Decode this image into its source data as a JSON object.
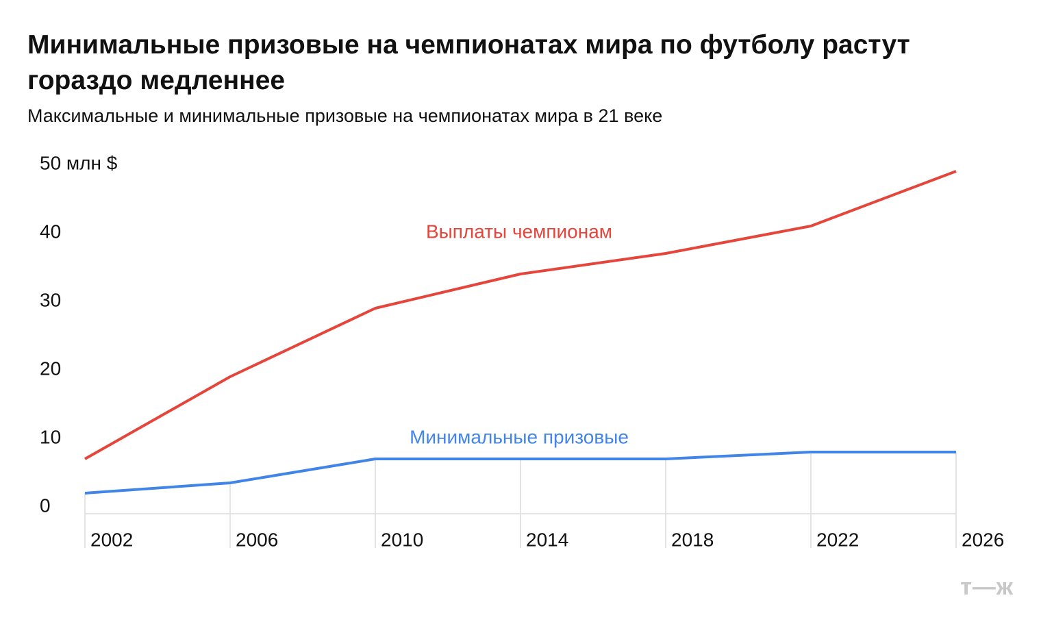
{
  "chart_data": {
    "type": "line",
    "title": "Минимальные призовые на чемпионатах мира по футболу растут гораздо медленнее",
    "subtitle": "Максимальные и минимальные призовые на чемпионатах мира в 21 веке",
    "x": [
      2002,
      2006,
      2010,
      2014,
      2018,
      2022,
      2026
    ],
    "xlim": [
      2002,
      2026
    ],
    "xticks": [
      2002,
      2006,
      2010,
      2014,
      2018,
      2022,
      2026
    ],
    "ylim": [
      0,
      50
    ],
    "yticks": [
      0,
      10,
      20,
      30,
      40,
      {
        "value": 50,
        "label": "50 млн $"
      }
    ],
    "series": [
      {
        "name": "Выплаты чемпионам",
        "color": "#e5463b",
        "values": [
          8,
          20,
          30,
          35,
          38,
          42,
          50
        ]
      },
      {
        "name": "Минимальные призовые",
        "color": "#4285e8",
        "values": [
          3,
          4.5,
          8,
          8,
          8,
          9,
          9
        ]
      }
    ],
    "logo": "т—ж"
  }
}
